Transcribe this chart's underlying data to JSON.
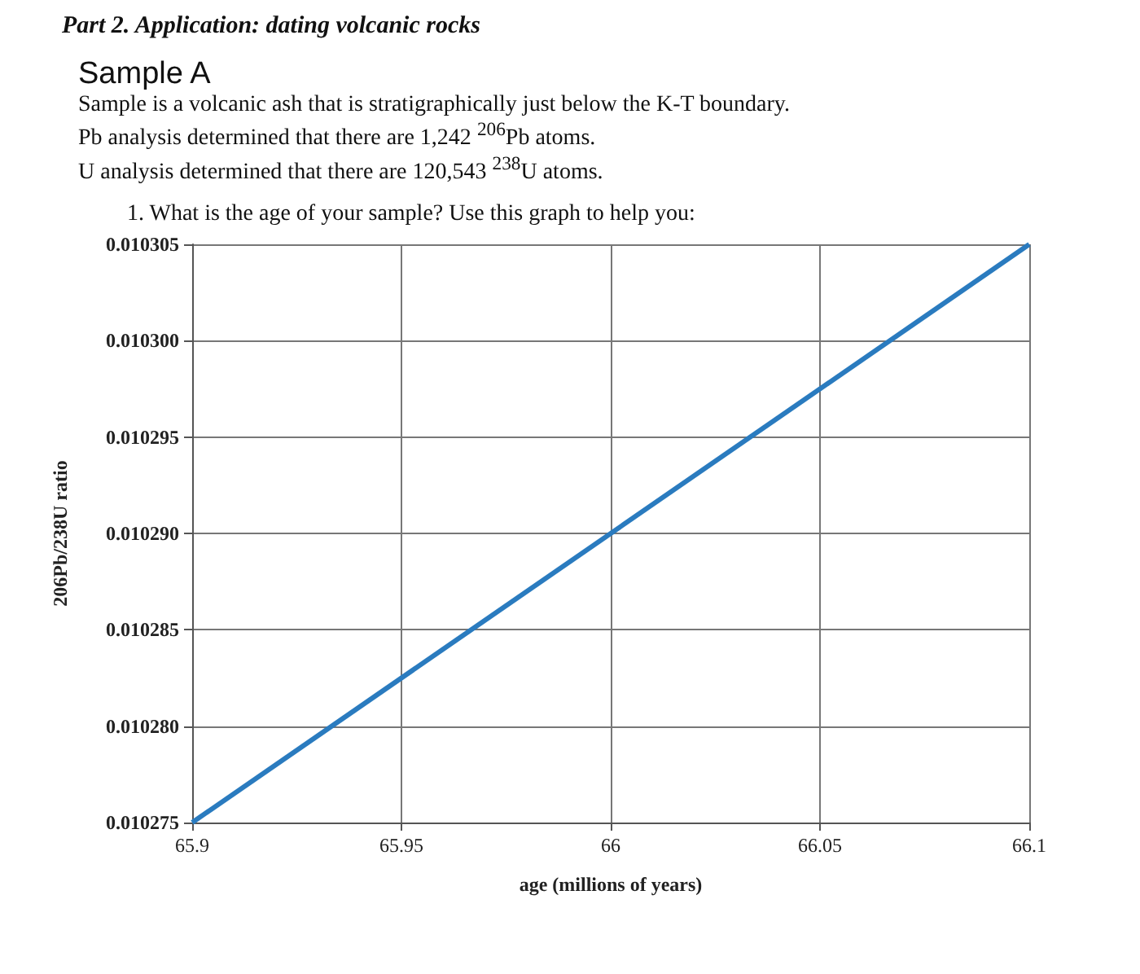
{
  "chart_data": {
    "type": "line",
    "title": "Part 2. Application: dating volcanic rocks",
    "subtitle": "Sample A",
    "annotations": [
      "Sample is a volcanic ash that is stratigraphically just below the K-T boundary.",
      "Pb analysis determined that there are 1,242 $^{206}$Pb atoms.",
      "U analysis determined that there are 120,543 $^{238}$U atoms.",
      "1. What is the age of your sample? Use this graph to help you:"
    ],
    "xlabel": "age (millions of years)",
    "ylabel": "206Pb/238U ratio",
    "x": [
      65.9,
      66.1
    ],
    "series": [
      {
        "color": "#2a7bbf",
        "values": [
          0.010275,
          0.010305
        ]
      }
    ],
    "xlim": [
      65.9,
      66.1
    ],
    "xticks": [
      65.9,
      65.95,
      66,
      66.05,
      66.1
    ],
    "ylim": [
      0.010275,
      0.010305
    ],
    "yticks": [
      0.010275,
      {
        "value": 0.01028,
        "label": "0.010280"
      },
      0.010285,
      {
        "value": 0.01029,
        "label": "0.010290"
      },
      0.010295,
      {
        "value": 0.0103,
        "label": "0.010300"
      },
      0.010305
    ],
    "grid": true
  }
}
